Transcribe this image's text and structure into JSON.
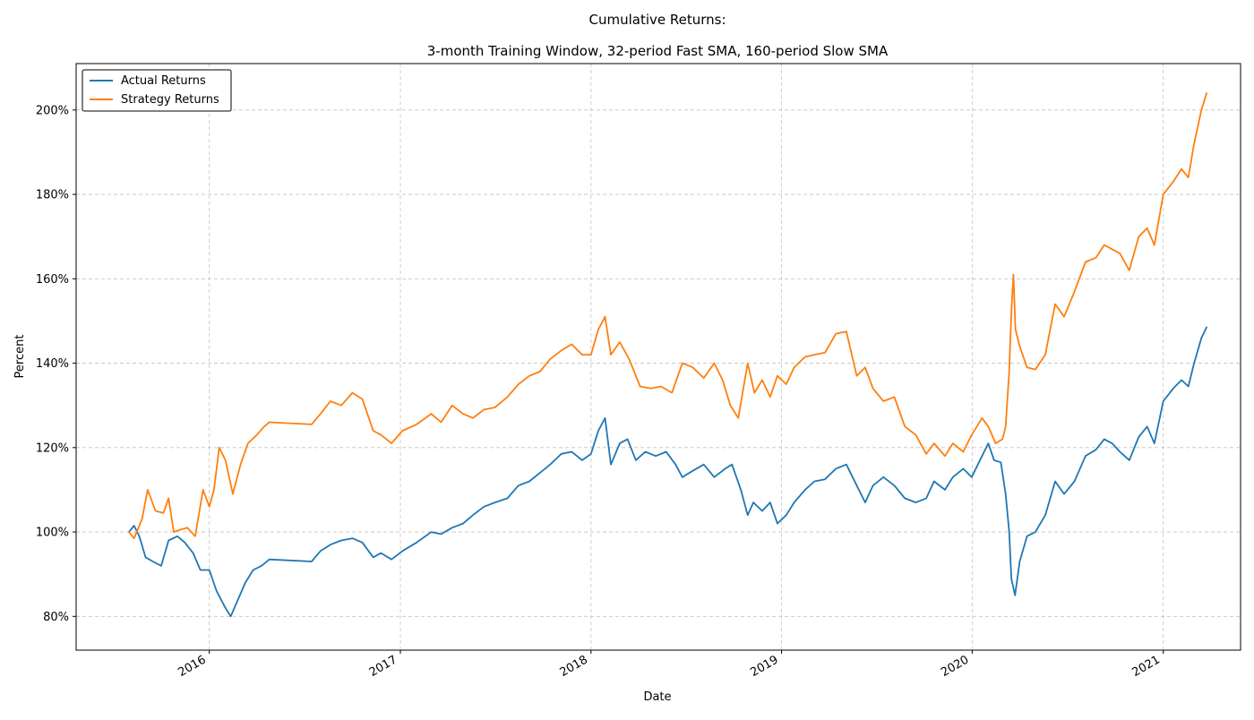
{
  "chart_data": {
    "type": "line",
    "title": "Cumulative Returns:",
    "subtitle": "3-month Training Window, 32-period Fast SMA, 160-period Slow SMA",
    "xlabel": "Date",
    "ylabel": "Percent",
    "xlim": [
      "2015-04-21",
      "2021-05-29"
    ],
    "ylim": [
      72,
      211
    ],
    "y_ticks": [
      80,
      100,
      120,
      140,
      160,
      180,
      200
    ],
    "y_tick_labels": [
      "80%",
      "100%",
      "120%",
      "140%",
      "160%",
      "180%",
      "200%"
    ],
    "x_ticks": [
      "2016-01-01",
      "2017-01-01",
      "2018-01-01",
      "2019-01-01",
      "2020-01-01",
      "2021-01-01"
    ],
    "x_tick_labels": [
      "2016",
      "2017",
      "2018",
      "2019",
      "2020",
      "2021"
    ],
    "grid": true,
    "legend_position": "top-left",
    "series": [
      {
        "name": "Actual Returns",
        "color": "#1f77b4",
        "points": [
          [
            "2015-07-31",
            100
          ],
          [
            "2015-08-10",
            101.5
          ],
          [
            "2015-08-20",
            99
          ],
          [
            "2015-09-01",
            94
          ],
          [
            "2015-09-15",
            93
          ],
          [
            "2015-10-01",
            92
          ],
          [
            "2015-10-15",
            98
          ],
          [
            "2015-11-01",
            99
          ],
          [
            "2015-11-15",
            97.5
          ],
          [
            "2015-12-01",
            95
          ],
          [
            "2015-12-15",
            91
          ],
          [
            "2016-01-01",
            91
          ],
          [
            "2016-01-15",
            86
          ],
          [
            "2016-02-01",
            82
          ],
          [
            "2016-02-11",
            80
          ],
          [
            "2016-02-25",
            84
          ],
          [
            "2016-03-10",
            88
          ],
          [
            "2016-03-25",
            91
          ],
          [
            "2016-04-10",
            92
          ],
          [
            "2016-04-25",
            93.5
          ],
          [
            "2016-07-15",
            93
          ],
          [
            "2016-08-01",
            95.5
          ],
          [
            "2016-08-20",
            97
          ],
          [
            "2016-09-10",
            98
          ],
          [
            "2016-10-01",
            98.5
          ],
          [
            "2016-10-20",
            97.5
          ],
          [
            "2016-11-10",
            94
          ],
          [
            "2016-11-25",
            95
          ],
          [
            "2016-12-15",
            93.5
          ],
          [
            "2017-01-05",
            95.5
          ],
          [
            "2017-02-01",
            97.5
          ],
          [
            "2017-03-01",
            100
          ],
          [
            "2017-03-20",
            99.5
          ],
          [
            "2017-04-10",
            101
          ],
          [
            "2017-05-01",
            102
          ],
          [
            "2017-05-20",
            104
          ],
          [
            "2017-06-10",
            106
          ],
          [
            "2017-07-01",
            107
          ],
          [
            "2017-07-25",
            108
          ],
          [
            "2017-08-15",
            111
          ],
          [
            "2017-09-05",
            112
          ],
          [
            "2017-09-25",
            114
          ],
          [
            "2017-10-15",
            116
          ],
          [
            "2017-11-05",
            118.5
          ],
          [
            "2017-11-25",
            119
          ],
          [
            "2017-12-15",
            117
          ],
          [
            "2018-01-01",
            118.5
          ],
          [
            "2018-01-15",
            124
          ],
          [
            "2018-01-28",
            127
          ],
          [
            "2018-02-08",
            116
          ],
          [
            "2018-02-25",
            121
          ],
          [
            "2018-03-12",
            122
          ],
          [
            "2018-03-28",
            117
          ],
          [
            "2018-04-15",
            119
          ],
          [
            "2018-05-05",
            118
          ],
          [
            "2018-05-25",
            119
          ],
          [
            "2018-06-12",
            116
          ],
          [
            "2018-06-25",
            113
          ],
          [
            "2018-07-15",
            114.5
          ],
          [
            "2018-08-05",
            116
          ],
          [
            "2018-08-25",
            113
          ],
          [
            "2018-09-15",
            115
          ],
          [
            "2018-09-28",
            116
          ],
          [
            "2018-10-15",
            110
          ],
          [
            "2018-10-28",
            104
          ],
          [
            "2018-11-08",
            107
          ],
          [
            "2018-11-25",
            105
          ],
          [
            "2018-12-10",
            107
          ],
          [
            "2018-12-24",
            102
          ],
          [
            "2019-01-10",
            104
          ],
          [
            "2019-01-25",
            107
          ],
          [
            "2019-02-15",
            110
          ],
          [
            "2019-03-05",
            112
          ],
          [
            "2019-03-25",
            112.5
          ],
          [
            "2019-04-15",
            115
          ],
          [
            "2019-05-05",
            116
          ],
          [
            "2019-05-25",
            111
          ],
          [
            "2019-06-10",
            107
          ],
          [
            "2019-06-25",
            111
          ],
          [
            "2019-07-15",
            113
          ],
          [
            "2019-08-05",
            111
          ],
          [
            "2019-08-25",
            108
          ],
          [
            "2019-09-15",
            107
          ],
          [
            "2019-10-05",
            108
          ],
          [
            "2019-10-20",
            112
          ],
          [
            "2019-11-10",
            110
          ],
          [
            "2019-11-25",
            113
          ],
          [
            "2019-12-15",
            115
          ],
          [
            "2019-12-31",
            113
          ],
          [
            "2020-01-20",
            118
          ],
          [
            "2020-02-01",
            121
          ],
          [
            "2020-02-12",
            117
          ],
          [
            "2020-02-25",
            116.5
          ],
          [
            "2020-03-05",
            109
          ],
          [
            "2020-03-12",
            100
          ],
          [
            "2020-03-16",
            89
          ],
          [
            "2020-03-23",
            85
          ],
          [
            "2020-04-01",
            93
          ],
          [
            "2020-04-15",
            99
          ],
          [
            "2020-05-01",
            100
          ],
          [
            "2020-05-20",
            104
          ],
          [
            "2020-06-08",
            112
          ],
          [
            "2020-06-25",
            109
          ],
          [
            "2020-07-15",
            112
          ],
          [
            "2020-08-05",
            118
          ],
          [
            "2020-08-25",
            119.5
          ],
          [
            "2020-09-10",
            122
          ],
          [
            "2020-09-25",
            121
          ],
          [
            "2020-10-10",
            119
          ],
          [
            "2020-10-28",
            117
          ],
          [
            "2020-11-15",
            122.5
          ],
          [
            "2020-12-01",
            125
          ],
          [
            "2020-12-15",
            121
          ],
          [
            "2021-01-01",
            131
          ],
          [
            "2021-01-20",
            134
          ],
          [
            "2021-02-05",
            136
          ],
          [
            "2021-02-18",
            134.5
          ],
          [
            "2021-03-01",
            140
          ],
          [
            "2021-03-15",
            146
          ],
          [
            "2021-03-25",
            148.5
          ]
        ]
      },
      {
        "name": "Strategy Returns",
        "color": "#ff7f0e",
        "points": [
          [
            "2015-07-31",
            100
          ],
          [
            "2015-08-10",
            98.5
          ],
          [
            "2015-08-25",
            103
          ],
          [
            "2015-09-05",
            110
          ],
          [
            "2015-09-20",
            105
          ],
          [
            "2015-10-05",
            104.5
          ],
          [
            "2015-10-15",
            108
          ],
          [
            "2015-10-25",
            100
          ],
          [
            "2015-11-05",
            100.5
          ],
          [
            "2015-11-20",
            101
          ],
          [
            "2015-12-05",
            99
          ],
          [
            "2015-12-20",
            110
          ],
          [
            "2016-01-01",
            106
          ],
          [
            "2016-01-10",
            110
          ],
          [
            "2016-01-20",
            120
          ],
          [
            "2016-02-01",
            117
          ],
          [
            "2016-02-15",
            109
          ],
          [
            "2016-03-01",
            116
          ],
          [
            "2016-03-15",
            121
          ],
          [
            "2016-04-01",
            123
          ],
          [
            "2016-04-15",
            125
          ],
          [
            "2016-04-25",
            126
          ],
          [
            "2016-07-15",
            125.5
          ],
          [
            "2016-08-01",
            128
          ],
          [
            "2016-08-20",
            131
          ],
          [
            "2016-09-10",
            130
          ],
          [
            "2016-10-01",
            133
          ],
          [
            "2016-10-20",
            131.5
          ],
          [
            "2016-11-10",
            124
          ],
          [
            "2016-11-25",
            123
          ],
          [
            "2016-12-15",
            121
          ],
          [
            "2017-01-05",
            124
          ],
          [
            "2017-02-01",
            125.5
          ],
          [
            "2017-03-01",
            128
          ],
          [
            "2017-03-20",
            126
          ],
          [
            "2017-04-10",
            130
          ],
          [
            "2017-05-01",
            128
          ],
          [
            "2017-05-20",
            127
          ],
          [
            "2017-06-10",
            129
          ],
          [
            "2017-07-01",
            129.5
          ],
          [
            "2017-07-25",
            132
          ],
          [
            "2017-08-15",
            135
          ],
          [
            "2017-09-05",
            137
          ],
          [
            "2017-09-25",
            138
          ],
          [
            "2017-10-15",
            141
          ],
          [
            "2017-11-05",
            143
          ],
          [
            "2017-11-25",
            144.5
          ],
          [
            "2017-12-15",
            142
          ],
          [
            "2018-01-01",
            142
          ],
          [
            "2018-01-15",
            148
          ],
          [
            "2018-01-28",
            151
          ],
          [
            "2018-02-08",
            142
          ],
          [
            "2018-02-25",
            145
          ],
          [
            "2018-03-15",
            141
          ],
          [
            "2018-04-05",
            134.5
          ],
          [
            "2018-04-25",
            134
          ],
          [
            "2018-05-15",
            134.5
          ],
          [
            "2018-06-05",
            133
          ],
          [
            "2018-06-25",
            140
          ],
          [
            "2018-07-15",
            139
          ],
          [
            "2018-08-05",
            136.5
          ],
          [
            "2018-08-25",
            140
          ],
          [
            "2018-09-10",
            136
          ],
          [
            "2018-09-25",
            130
          ],
          [
            "2018-10-10",
            127
          ],
          [
            "2018-10-28",
            140
          ],
          [
            "2018-11-10",
            133
          ],
          [
            "2018-11-25",
            136
          ],
          [
            "2018-12-10",
            132
          ],
          [
            "2018-12-24",
            137
          ],
          [
            "2019-01-10",
            135
          ],
          [
            "2019-01-25",
            139
          ],
          [
            "2019-02-15",
            141.5
          ],
          [
            "2019-03-05",
            142
          ],
          [
            "2019-03-25",
            142.5
          ],
          [
            "2019-04-15",
            147
          ],
          [
            "2019-05-05",
            147.5
          ],
          [
            "2019-05-25",
            137
          ],
          [
            "2019-06-10",
            139
          ],
          [
            "2019-06-25",
            134
          ],
          [
            "2019-07-15",
            131
          ],
          [
            "2019-08-05",
            132
          ],
          [
            "2019-08-25",
            125
          ],
          [
            "2019-09-15",
            123
          ],
          [
            "2019-10-05",
            118.5
          ],
          [
            "2019-10-20",
            121
          ],
          [
            "2019-11-10",
            118
          ],
          [
            "2019-11-25",
            121
          ],
          [
            "2019-12-15",
            119
          ],
          [
            "2019-12-31",
            123
          ],
          [
            "2020-01-20",
            127
          ],
          [
            "2020-02-01",
            125
          ],
          [
            "2020-02-15",
            121
          ],
          [
            "2020-02-28",
            122
          ],
          [
            "2020-03-05",
            125
          ],
          [
            "2020-03-12",
            138
          ],
          [
            "2020-03-16",
            152
          ],
          [
            "2020-03-20",
            161
          ],
          [
            "2020-03-24",
            148
          ],
          [
            "2020-04-01",
            144
          ],
          [
            "2020-04-15",
            139
          ],
          [
            "2020-05-01",
            138.5
          ],
          [
            "2020-05-20",
            142
          ],
          [
            "2020-06-08",
            154
          ],
          [
            "2020-06-25",
            151
          ],
          [
            "2020-07-15",
            157
          ],
          [
            "2020-08-05",
            164
          ],
          [
            "2020-08-25",
            165
          ],
          [
            "2020-09-10",
            168
          ],
          [
            "2020-09-25",
            167
          ],
          [
            "2020-10-10",
            166
          ],
          [
            "2020-10-28",
            162
          ],
          [
            "2020-11-15",
            170
          ],
          [
            "2020-12-01",
            172
          ],
          [
            "2020-12-15",
            168
          ],
          [
            "2021-01-01",
            180
          ],
          [
            "2021-01-20",
            183
          ],
          [
            "2021-02-05",
            186
          ],
          [
            "2021-02-18",
            184
          ],
          [
            "2021-03-01",
            192
          ],
          [
            "2021-03-15",
            200
          ],
          [
            "2021-03-25",
            204
          ]
        ]
      }
    ]
  }
}
